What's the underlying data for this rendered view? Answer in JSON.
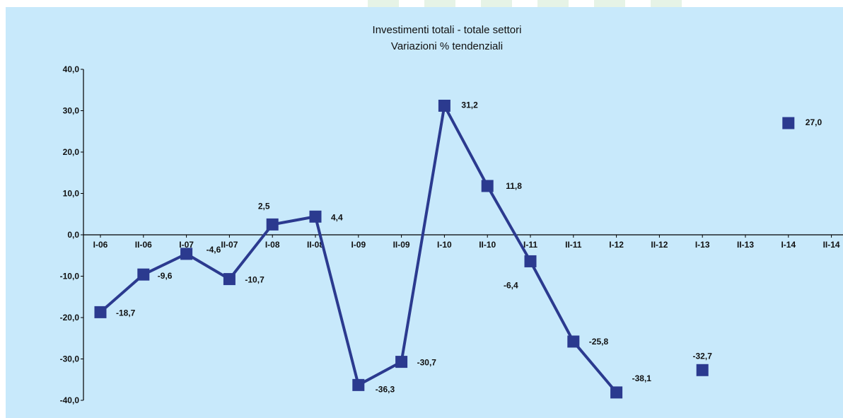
{
  "colors": {
    "background": "#ffffff",
    "plot_background": "#c8e9fb",
    "top_band_stripes": "#e6f3e6",
    "series": "#2b3a8f",
    "axis": "#000000"
  },
  "chart_data": {
    "type": "line",
    "title": "Investimenti totali - totale settori",
    "subtitle": "Variazioni % tendenziali",
    "xlabel": "",
    "ylabel": "",
    "ylim": [
      -40,
      40
    ],
    "y_ticks": [
      "40,0",
      "30,0",
      "20,0",
      "10,0",
      "0,0",
      "-10,0",
      "-20,0",
      "-30,0",
      "-40,0"
    ],
    "y_tick_values": [
      40,
      30,
      20,
      10,
      0,
      -10,
      -20,
      -30,
      -40
    ],
    "categories": [
      "I-06",
      "II-06",
      "I-07",
      "II-07",
      "I-08",
      "II-08",
      "I-09",
      "II-09",
      "I-10",
      "II-10",
      "I-11",
      "II-11",
      "I-12",
      "II-12",
      "I-13",
      "II-13",
      "I-14",
      "II-14"
    ],
    "grid": false,
    "legend": "none",
    "series": [
      {
        "values": [
          -18.7,
          -9.6,
          -4.6,
          -10.7,
          2.5,
          4.4,
          -36.3,
          -30.7,
          31.2,
          11.8,
          -6.4,
          -25.8,
          -38.1,
          null,
          -32.7,
          null,
          27.0,
          null
        ],
        "labels": [
          "-18,7",
          "-9,6",
          "-4,6",
          "-10,7",
          "2,5",
          "4,4",
          "-36,3",
          "-30,7",
          "31,2",
          "11,8",
          "-6,4",
          "-25,8",
          "-38,1",
          null,
          "-32,7",
          null,
          "27,0",
          null
        ]
      }
    ]
  }
}
